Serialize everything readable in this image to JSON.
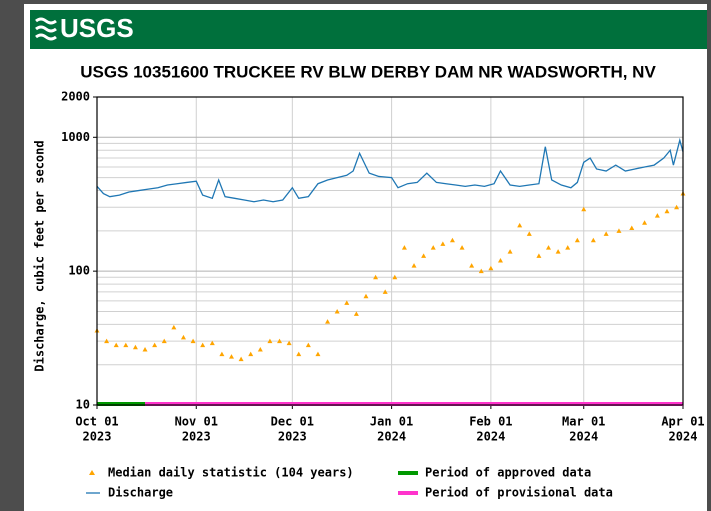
{
  "logo": "USGS",
  "chart_data": {
    "type": "line",
    "title": "USGS 10351600 TRUCKEE RV BLW DERBY DAM NR WADSWORTH, NV",
    "ylabel": "Discharge, cubic feet per second",
    "yscale": "log",
    "grid": true,
    "ylim": [
      10,
      2000
    ],
    "yticks": [
      10,
      100,
      1000,
      2000
    ],
    "yminor_ticks": [
      20,
      30,
      40,
      50,
      60,
      70,
      80,
      90,
      200,
      300,
      400,
      500,
      600,
      700,
      800,
      900
    ],
    "xlim": [
      "2023-10-01",
      "2024-04-01"
    ],
    "xticks": [
      {
        "value": "2023-10-01",
        "label": [
          "Oct 01",
          "2023"
        ]
      },
      {
        "value": "2023-11-01",
        "label": [
          "Nov 01",
          "2023"
        ]
      },
      {
        "value": "2023-12-01",
        "label": [
          "Dec 01",
          "2023"
        ]
      },
      {
        "value": "2024-01-01",
        "label": [
          "Jan 01",
          "2024"
        ]
      },
      {
        "value": "2024-02-01",
        "label": [
          "Feb 01",
          "2024"
        ]
      },
      {
        "value": "2024-03-01",
        "label": [
          "Mar 01",
          "2024"
        ]
      },
      {
        "value": "2024-04-01",
        "label": [
          "Apr 01",
          "2024"
        ]
      }
    ],
    "series": [
      {
        "name": "Median daily statistic (104 years)",
        "color": "#ffa500",
        "marker": "triangle",
        "x": [
          "2023-10-01",
          "2023-10-04",
          "2023-10-07",
          "2023-10-10",
          "2023-10-13",
          "2023-10-16",
          "2023-10-19",
          "2023-10-22",
          "2023-10-25",
          "2023-10-28",
          "2023-10-31",
          "2023-11-03",
          "2023-11-06",
          "2023-11-09",
          "2023-11-12",
          "2023-11-15",
          "2023-11-18",
          "2023-11-21",
          "2023-11-24",
          "2023-11-27",
          "2023-11-30",
          "2023-12-03",
          "2023-12-06",
          "2023-12-09",
          "2023-12-12",
          "2023-12-15",
          "2023-12-18",
          "2023-12-21",
          "2023-12-24",
          "2023-12-27",
          "2023-12-30",
          "2024-01-02",
          "2024-01-05",
          "2024-01-08",
          "2024-01-11",
          "2024-01-14",
          "2024-01-17",
          "2024-01-20",
          "2024-01-23",
          "2024-01-26",
          "2024-01-29",
          "2024-02-01",
          "2024-02-04",
          "2024-02-07",
          "2024-02-10",
          "2024-02-13",
          "2024-02-16",
          "2024-02-19",
          "2024-02-22",
          "2024-02-25",
          "2024-02-28",
          "2024-03-01",
          "2024-03-04",
          "2024-03-08",
          "2024-03-12",
          "2024-03-16",
          "2024-03-20",
          "2024-03-24",
          "2024-03-27",
          "2024-03-30",
          "2024-04-01"
        ],
        "values": [
          36,
          30,
          28,
          28,
          27,
          26,
          28,
          30,
          38,
          32,
          30,
          28,
          29,
          24,
          23,
          22,
          24,
          26,
          30,
          30,
          29,
          24,
          28,
          24,
          42,
          50,
          58,
          48,
          65,
          90,
          70,
          90,
          150,
          110,
          130,
          150,
          160,
          170,
          150,
          110,
          100,
          105,
          120,
          140,
          220,
          190,
          130,
          150,
          140,
          150,
          170,
          290,
          170,
          190,
          200,
          210,
          230,
          260,
          280,
          300,
          380
        ]
      },
      {
        "name": "Discharge",
        "color": "#1f77b4",
        "marker": "line",
        "x": [
          "2023-10-01",
          "2023-10-03",
          "2023-10-05",
          "2023-10-08",
          "2023-10-11",
          "2023-10-14",
          "2023-10-17",
          "2023-10-20",
          "2023-10-23",
          "2023-10-26",
          "2023-10-29",
          "2023-11-01",
          "2023-11-03",
          "2023-11-06",
          "2023-11-08",
          "2023-11-10",
          "2023-11-13",
          "2023-11-16",
          "2023-11-19",
          "2023-11-22",
          "2023-11-25",
          "2023-11-28",
          "2023-12-01",
          "2023-12-03",
          "2023-12-06",
          "2023-12-09",
          "2023-12-12",
          "2023-12-15",
          "2023-12-18",
          "2023-12-20",
          "2023-12-22",
          "2023-12-25",
          "2023-12-28",
          "2024-01-01",
          "2024-01-03",
          "2024-01-06",
          "2024-01-09",
          "2024-01-12",
          "2024-01-15",
          "2024-01-18",
          "2024-01-21",
          "2024-01-24",
          "2024-01-27",
          "2024-01-30",
          "2024-02-02",
          "2024-02-04",
          "2024-02-07",
          "2024-02-10",
          "2024-02-13",
          "2024-02-16",
          "2024-02-18",
          "2024-02-20",
          "2024-02-23",
          "2024-02-26",
          "2024-02-28",
          "2024-03-01",
          "2024-03-03",
          "2024-03-05",
          "2024-03-08",
          "2024-03-11",
          "2024-03-14",
          "2024-03-17",
          "2024-03-20",
          "2024-03-23",
          "2024-03-26",
          "2024-03-28",
          "2024-03-29",
          "2024-03-31",
          "2024-04-01"
        ],
        "values": [
          430,
          380,
          360,
          370,
          390,
          400,
          410,
          420,
          440,
          450,
          460,
          470,
          370,
          350,
          480,
          360,
          350,
          340,
          330,
          340,
          330,
          340,
          420,
          350,
          360,
          450,
          480,
          500,
          520,
          560,
          760,
          540,
          510,
          500,
          420,
          450,
          460,
          540,
          460,
          450,
          440,
          430,
          440,
          430,
          450,
          560,
          440,
          430,
          440,
          450,
          850,
          480,
          440,
          420,
          460,
          650,
          700,
          580,
          560,
          620,
          560,
          580,
          600,
          620,
          700,
          800,
          620,
          950,
          780
        ]
      }
    ],
    "periods": [
      {
        "name": "Period of approved data",
        "color": "#009900",
        "start": "2023-10-01",
        "end": "2023-10-16"
      },
      {
        "name": "Period of provisional data",
        "color": "#ff33cc",
        "start": "2023-10-16",
        "end": "2024-04-01"
      }
    ]
  }
}
